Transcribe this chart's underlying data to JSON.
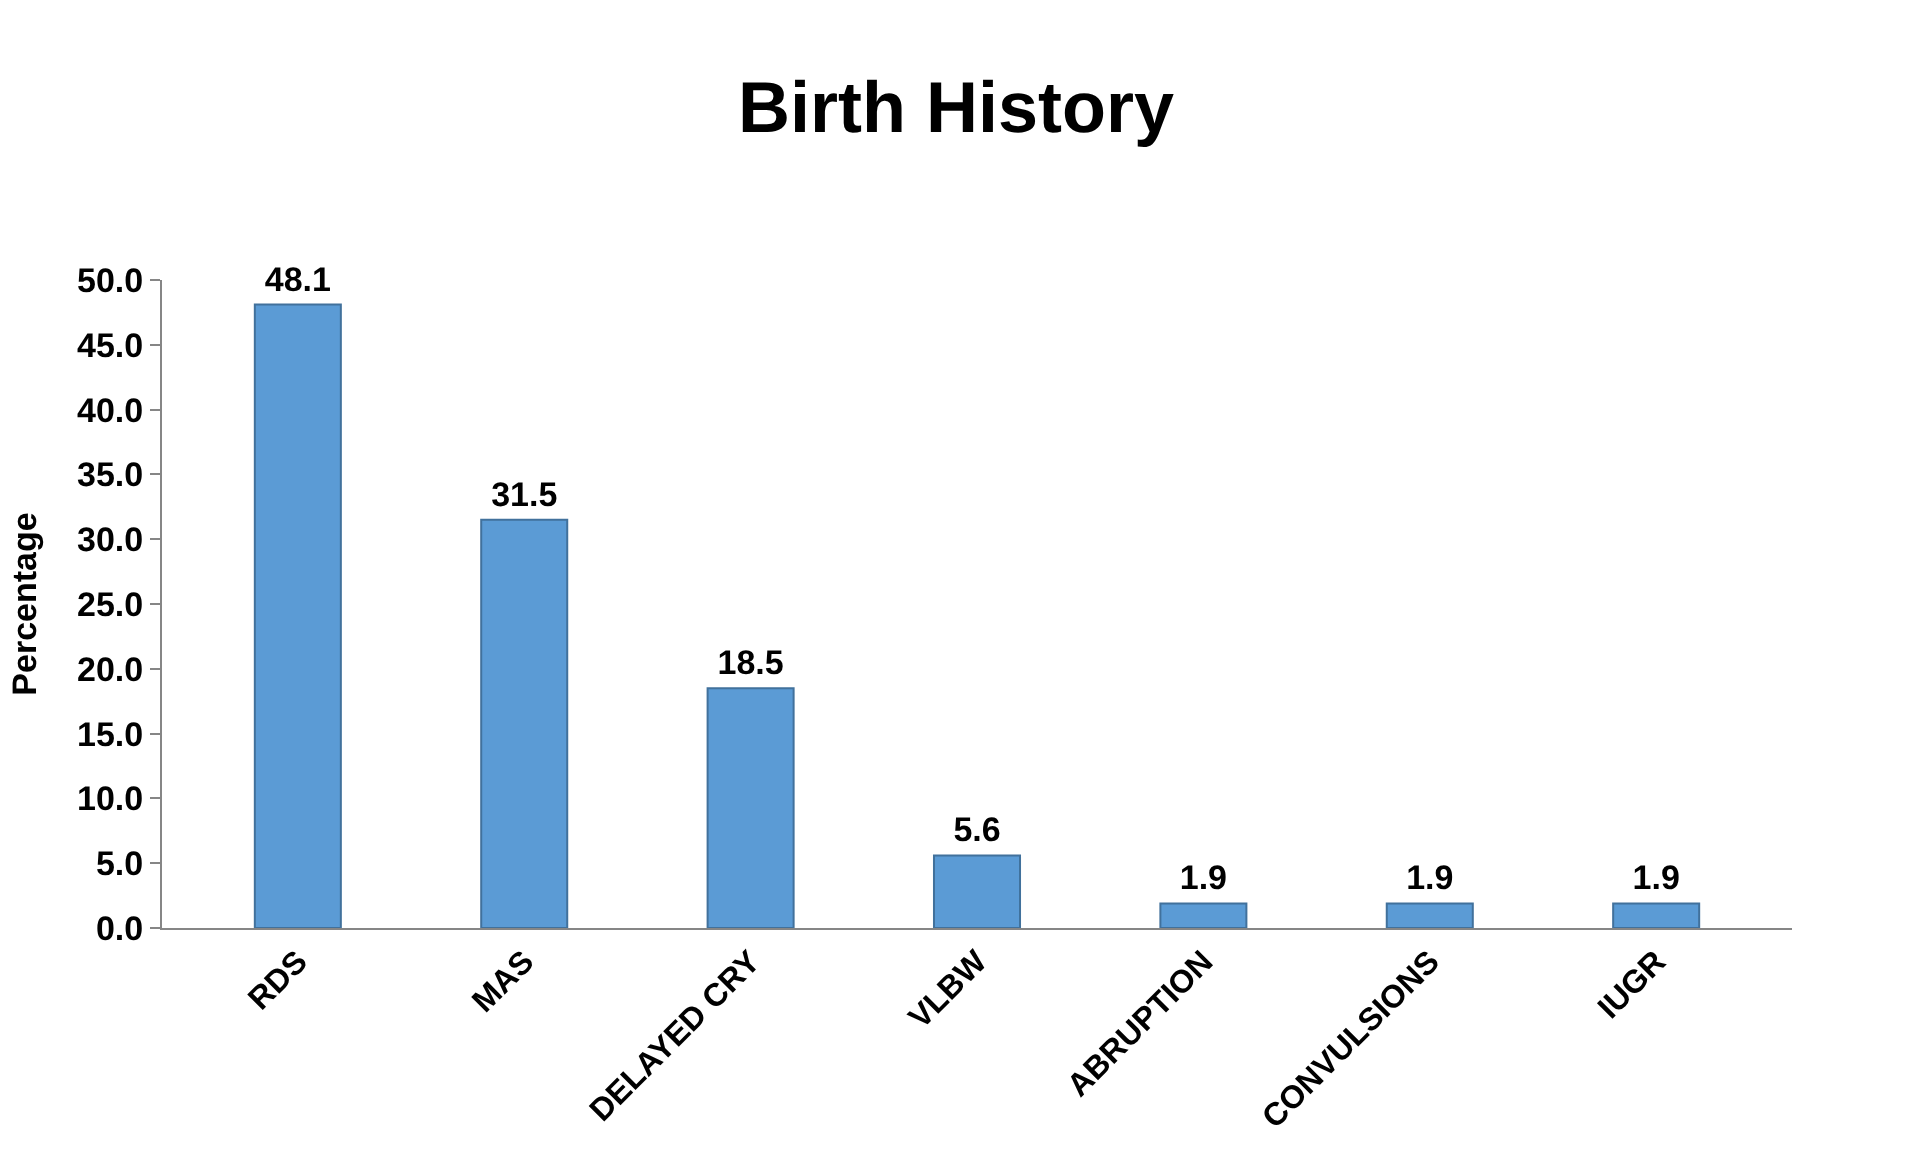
{
  "chart_data": {
    "type": "bar",
    "title": "Birth History",
    "ylabel": "Percentage",
    "categories": [
      "RDS",
      "MAS",
      "DELAYED CRY",
      "VLBW",
      "ABRUPTION",
      "CONVULSIONS",
      "IUGR"
    ],
    "values": [
      48.1,
      31.5,
      18.5,
      5.6,
      1.9,
      1.9,
      1.9
    ],
    "color": "#5b9bd5",
    "ylim": [
      0,
      50
    ],
    "yticks": [
      {
        "value": 0,
        "label": "0.0"
      },
      {
        "value": 5,
        "label": "5.0"
      },
      {
        "value": 10,
        "label": "10.0"
      },
      {
        "value": 15,
        "label": "15.0"
      },
      {
        "value": 20,
        "label": "20.0"
      },
      {
        "value": 25,
        "label": "25.0"
      },
      {
        "value": 30,
        "label": "30.0"
      },
      {
        "value": 35,
        "label": "35.0"
      },
      {
        "value": 40,
        "label": "40.0"
      },
      {
        "value": 45,
        "label": "45.0"
      },
      {
        "value": 50,
        "label": "50.0"
      }
    ],
    "data_labels": true
  }
}
